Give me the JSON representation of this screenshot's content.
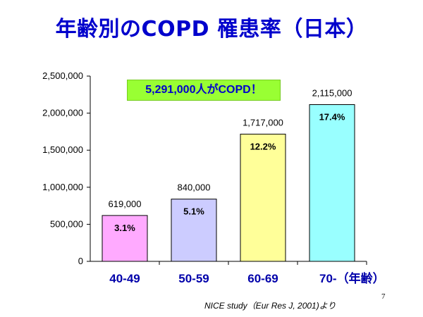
{
  "title": "年齢別のCOPD 罹患率（日本）",
  "callout": "5,291,000人がCOPD！",
  "source": "NICE study（Eur Res J, 2001)より",
  "page_number": "7",
  "chart_data": {
    "type": "bar",
    "categories": [
      "40-49",
      "50-59",
      "60-69",
      "70-"
    ],
    "x_unit_label": "（年齢）",
    "values": [
      619000,
      840000,
      1717000,
      2115000
    ],
    "value_labels": [
      "619,000",
      "840,000",
      "1,717,000",
      "2,115,000"
    ],
    "percent_labels": [
      "3.1%",
      "5.1%",
      "12.2%",
      "17.4%"
    ],
    "bar_colors": [
      "#ffaaff",
      "#ccccff",
      "#ffff99",
      "#99ffff"
    ],
    "yticks": [
      0,
      500000,
      1000000,
      1500000,
      2000000,
      2500000
    ],
    "ytick_labels": [
      "0",
      "500,000",
      "1,000,000",
      "1,500,000",
      "2,000,000",
      "2,500,000"
    ],
    "ylim": [
      0,
      2500000
    ],
    "grid": false,
    "legend": "none"
  }
}
